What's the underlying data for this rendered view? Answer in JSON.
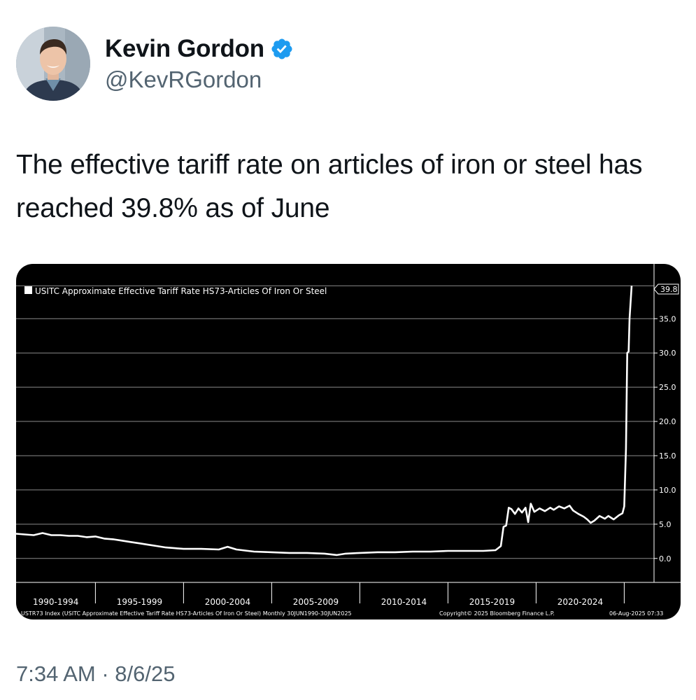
{
  "tweet": {
    "author_name": "Kevin Gordon",
    "author_handle": "@KevRGordon",
    "text": "The effective tariff rate on articles of iron or steel has reached 39.8% as of June",
    "timestamp": "7:34 AM · 8/6/25",
    "colors": {
      "verified": "#1d9bf0",
      "secondary_text": "#536471",
      "chart_bg": "#000000",
      "chart_line": "#ffffff"
    }
  },
  "chart_data": {
    "type": "line",
    "legend": "USITC Approximate Effective Tariff Rate HS73-Articles Of Iron Or Steel",
    "last_value_label": "39.8",
    "ylim": [
      -3.5,
      43
    ],
    "y_ticks": [
      0,
      5,
      10,
      15,
      20,
      25,
      30,
      35
    ],
    "y_tick_labels": [
      "0.0",
      "5.0",
      "10.0",
      "15.0",
      "20.0",
      "25.0",
      "30.0",
      "35.0"
    ],
    "x_range": [
      1990.5,
      2025.5
    ],
    "x_categories": [
      "1990-1994",
      "1995-1999",
      "2000-2004",
      "2005-2009",
      "2010-2014",
      "2015-2019",
      "2020-2024"
    ],
    "footer_left": "USTR73 Index (USITC Approximate Effective Tariff Rate HS73-Articles Of Iron Or Steel)  Monthly 30JUN1990-30JUN2025",
    "footer_center": "Copyright© 2025 Bloomberg Finance L.P.",
    "footer_right": "06-Aug-2025 07:33",
    "series": [
      {
        "name": "USTR73",
        "points": [
          [
            1990.5,
            3.6
          ],
          [
            1991.0,
            3.5
          ],
          [
            1991.5,
            3.4
          ],
          [
            1992.0,
            3.7
          ],
          [
            1992.5,
            3.4
          ],
          [
            1993.0,
            3.4
          ],
          [
            1993.5,
            3.3
          ],
          [
            1994.0,
            3.3
          ],
          [
            1994.5,
            3.1
          ],
          [
            1995.0,
            3.2
          ],
          [
            1995.5,
            2.9
          ],
          [
            1996.0,
            2.8
          ],
          [
            1996.5,
            2.6
          ],
          [
            1997.0,
            2.4
          ],
          [
            1997.5,
            2.2
          ],
          [
            1998.0,
            2.0
          ],
          [
            1998.5,
            1.8
          ],
          [
            1999.0,
            1.6
          ],
          [
            1999.5,
            1.5
          ],
          [
            2000.0,
            1.4
          ],
          [
            2001.0,
            1.4
          ],
          [
            2002.0,
            1.3
          ],
          [
            2002.5,
            1.7
          ],
          [
            2003.0,
            1.3
          ],
          [
            2004.0,
            1.0
          ],
          [
            2005.0,
            0.9
          ],
          [
            2006.0,
            0.8
          ],
          [
            2007.0,
            0.8
          ],
          [
            2008.0,
            0.7
          ],
          [
            2008.7,
            0.5
          ],
          [
            2009.2,
            0.7
          ],
          [
            2010.0,
            0.8
          ],
          [
            2011.0,
            0.9
          ],
          [
            2012.0,
            0.9
          ],
          [
            2013.0,
            1.0
          ],
          [
            2014.0,
            1.0
          ],
          [
            2015.0,
            1.1
          ],
          [
            2016.0,
            1.1
          ],
          [
            2017.0,
            1.1
          ],
          [
            2017.7,
            1.2
          ],
          [
            2018.0,
            1.8
          ],
          [
            2018.15,
            4.6
          ],
          [
            2018.3,
            4.8
          ],
          [
            2018.45,
            7.4
          ],
          [
            2018.6,
            7.2
          ],
          [
            2018.8,
            6.5
          ],
          [
            2019.0,
            7.3
          ],
          [
            2019.2,
            6.7
          ],
          [
            2019.4,
            7.4
          ],
          [
            2019.55,
            5.3
          ],
          [
            2019.7,
            8.0
          ],
          [
            2019.9,
            6.8
          ],
          [
            2020.2,
            7.3
          ],
          [
            2020.5,
            6.9
          ],
          [
            2020.8,
            7.4
          ],
          [
            2021.0,
            7.1
          ],
          [
            2021.3,
            7.6
          ],
          [
            2021.6,
            7.3
          ],
          [
            2021.9,
            7.7
          ],
          [
            2022.1,
            7.0
          ],
          [
            2022.4,
            6.5
          ],
          [
            2022.7,
            6.1
          ],
          [
            2022.9,
            5.7
          ],
          [
            2023.1,
            5.2
          ],
          [
            2023.3,
            5.5
          ],
          [
            2023.6,
            6.2
          ],
          [
            2023.9,
            5.8
          ],
          [
            2024.1,
            6.2
          ],
          [
            2024.4,
            5.7
          ],
          [
            2024.7,
            6.3
          ],
          [
            2024.9,
            6.6
          ],
          [
            2025.0,
            7.6
          ],
          [
            2025.1,
            16.0
          ],
          [
            2025.17,
            30.0
          ],
          [
            2025.25,
            30.2
          ],
          [
            2025.3,
            35.0
          ],
          [
            2025.42,
            39.8
          ]
        ]
      }
    ]
  }
}
